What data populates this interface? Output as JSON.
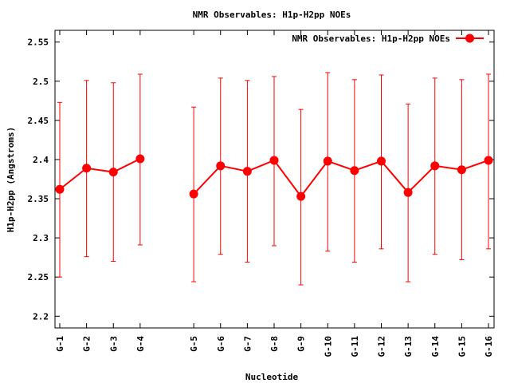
{
  "chart_data": {
    "type": "line",
    "title": "NMR Observables: H1p-H2pp NOEs",
    "xlabel": "Nucleotide",
    "ylabel": "H1p-H2pp (Angstroms)",
    "ylim": [
      2.185,
      2.565
    ],
    "yticks": [
      "2.2",
      "2.25",
      "2.3",
      "2.35",
      "2.4",
      "2.45",
      "2.5",
      "2.55"
    ],
    "x_index_range": [
      0,
      16
    ],
    "grid": false,
    "legend_position": "top-right",
    "series": [
      {
        "name": "NMR Observables: H1p-H2pp NOEs",
        "color": "#ff0000",
        "points": [
          {
            "label": "G-1",
            "x": 0,
            "y": 2.362,
            "low": 2.25,
            "high": 2.473
          },
          {
            "label": "G-2",
            "x": 1,
            "y": 2.389,
            "low": 2.276,
            "high": 2.501
          },
          {
            "label": "G-3",
            "x": 2,
            "y": 2.384,
            "low": 2.27,
            "high": 2.498
          },
          {
            "label": "G-4",
            "x": 3,
            "y": 2.401,
            "low": 2.291,
            "high": 2.509
          },
          {
            "label": "G-5",
            "x": 5,
            "y": 2.356,
            "low": 2.244,
            "high": 2.467
          },
          {
            "label": "G-6",
            "x": 6,
            "y": 2.392,
            "low": 2.279,
            "high": 2.504
          },
          {
            "label": "G-7",
            "x": 7,
            "y": 2.385,
            "low": 2.269,
            "high": 2.501
          },
          {
            "label": "G-8",
            "x": 8,
            "y": 2.399,
            "low": 2.29,
            "high": 2.506
          },
          {
            "label": "G-9",
            "x": 9,
            "y": 2.353,
            "low": 2.24,
            "high": 2.464
          },
          {
            "label": "G-10",
            "x": 10,
            "y": 2.398,
            "low": 2.283,
            "high": 2.511
          },
          {
            "label": "G-11",
            "x": 11,
            "y": 2.386,
            "low": 2.269,
            "high": 2.502
          },
          {
            "label": "G-12",
            "x": 12,
            "y": 2.398,
            "low": 2.286,
            "high": 2.508
          },
          {
            "label": "G-13",
            "x": 13,
            "y": 2.358,
            "low": 2.244,
            "high": 2.471
          },
          {
            "label": "G-14",
            "x": 14,
            "y": 2.392,
            "low": 2.279,
            "high": 2.504
          },
          {
            "label": "G-15",
            "x": 15,
            "y": 2.387,
            "low": 2.272,
            "high": 2.502
          },
          {
            "label": "G-16",
            "x": 16,
            "y": 2.399,
            "low": 2.286,
            "high": 2.509
          }
        ]
      }
    ]
  }
}
